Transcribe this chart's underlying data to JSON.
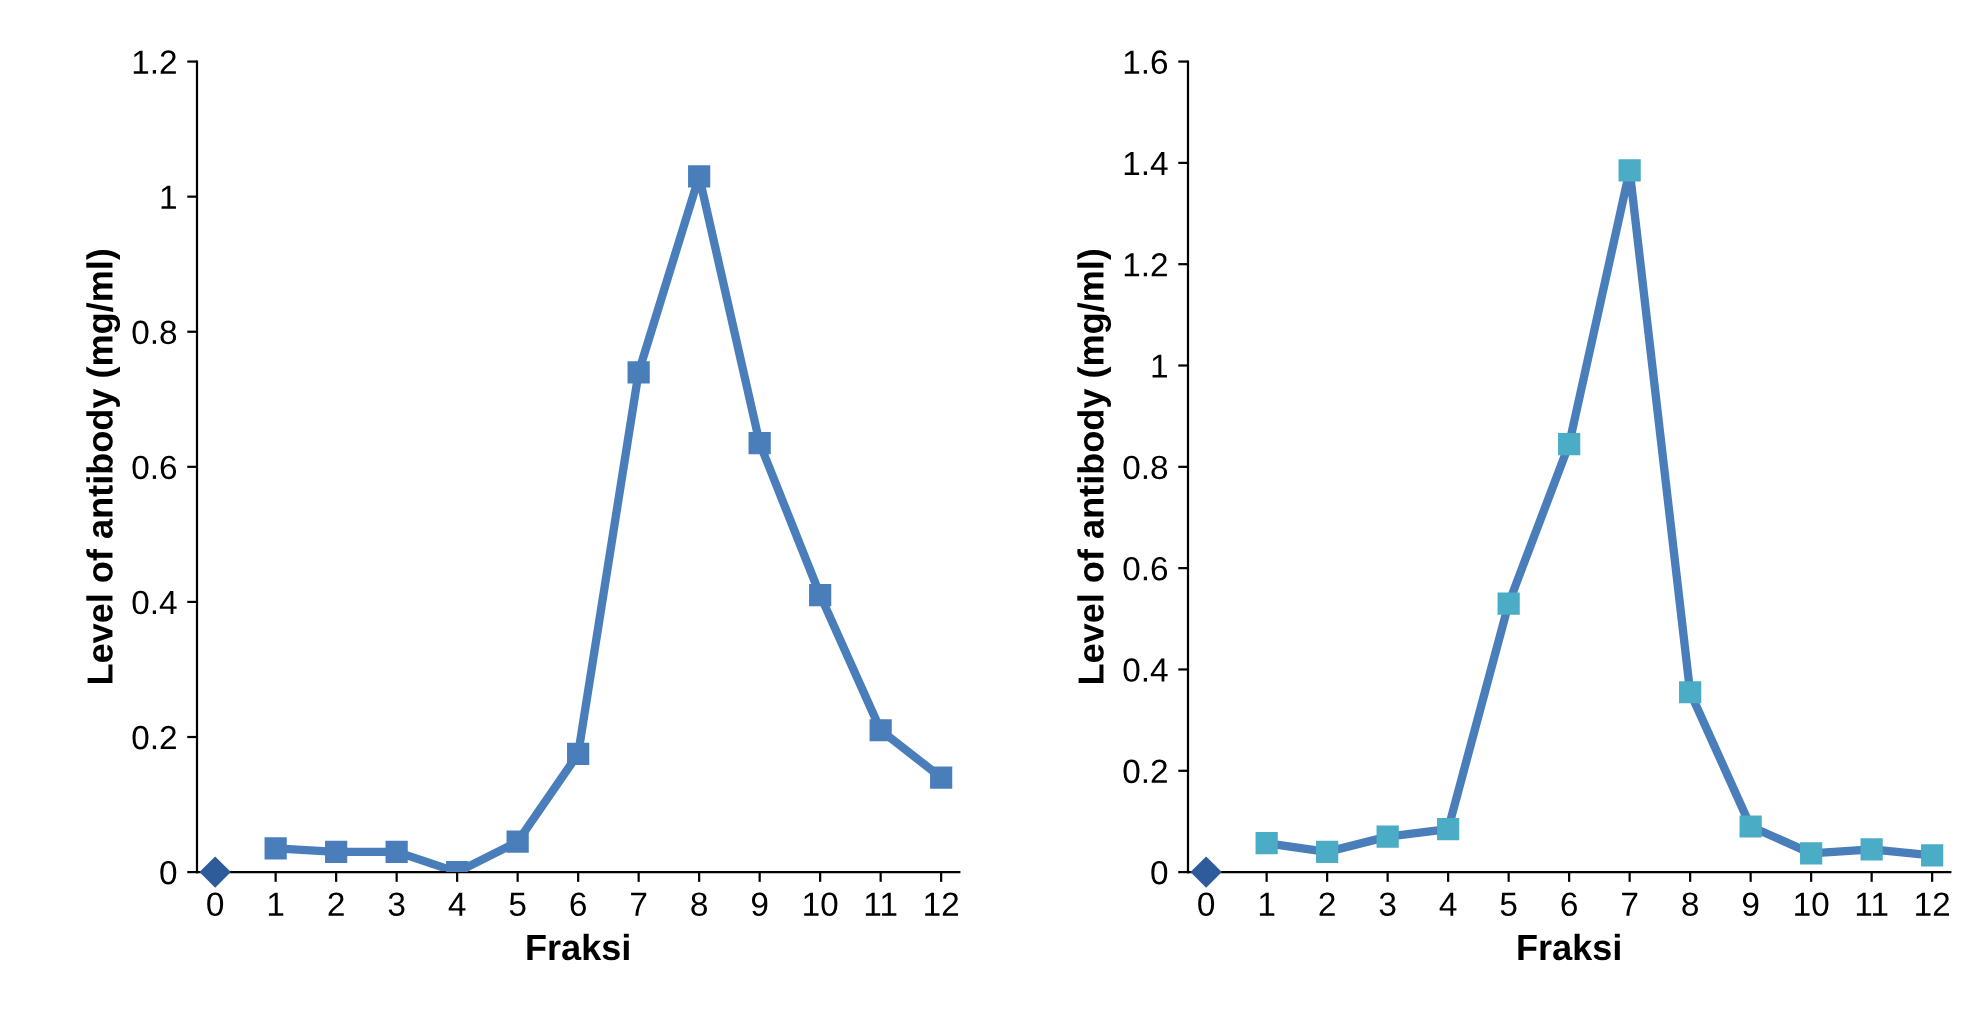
{
  "chart_data": [
    {
      "type": "line",
      "xlabel": "Fraksi",
      "ylabel": "Level of antibody (mg/ml)",
      "categories": [
        "0",
        "1",
        "2",
        "3",
        "4",
        "5",
        "6",
        "7",
        "8",
        "9",
        "10",
        "11",
        "12"
      ],
      "ylim": [
        0,
        1.2
      ],
      "yticks": [
        0,
        0.2,
        0.4,
        0.6,
        0.8,
        1,
        1.2
      ],
      "grid": false,
      "legend": false,
      "series": [
        {
          "type": "scatter",
          "marker": "diamond",
          "color": "#2e5b9a",
          "values": [
            0,
            null,
            null,
            null,
            null,
            null,
            null,
            null,
            null,
            null,
            null,
            null,
            null
          ]
        },
        {
          "marker": "square",
          "color": "#4a7ebb",
          "values": [
            null,
            0.035,
            0.03,
            0.03,
            0.0,
            0.045,
            0.175,
            0.74,
            1.03,
            0.635,
            0.41,
            0.21,
            0.14
          ]
        }
      ]
    },
    {
      "type": "line",
      "xlabel": "Fraksi",
      "ylabel": "Level of antibody (mg/ml)",
      "categories": [
        "0",
        "1",
        "2",
        "3",
        "4",
        "5",
        "6",
        "7",
        "8",
        "9",
        "10",
        "11",
        "12"
      ],
      "ylim": [
        0,
        1.6
      ],
      "yticks": [
        0,
        0.2,
        0.4,
        0.6,
        0.8,
        1,
        1.2,
        1.4,
        1.6
      ],
      "grid": false,
      "legend": false,
      "series": [
        {
          "type": "scatter",
          "marker": "diamond",
          "color": "#2e5b9a",
          "values": [
            0,
            null,
            null,
            null,
            null,
            null,
            null,
            null,
            null,
            null,
            null,
            null,
            null
          ]
        },
        {
          "marker": "square",
          "color": "#4a7ebb",
          "colors": [
            null,
            "#4bacc6",
            "#4bacc6",
            "#4bacc6",
            "#4bacc6",
            "#4bacc6",
            "#4bacc6",
            "#4bacc6",
            "#4bacc6",
            "#4bacc6",
            "#4bacc6",
            "#4bacc6",
            "#4bacc6"
          ],
          "values": [
            null,
            0.057,
            0.04,
            0.07,
            0.085,
            0.53,
            0.845,
            1.385,
            0.355,
            0.09,
            0.037,
            0.045,
            0.033
          ]
        }
      ]
    }
  ]
}
